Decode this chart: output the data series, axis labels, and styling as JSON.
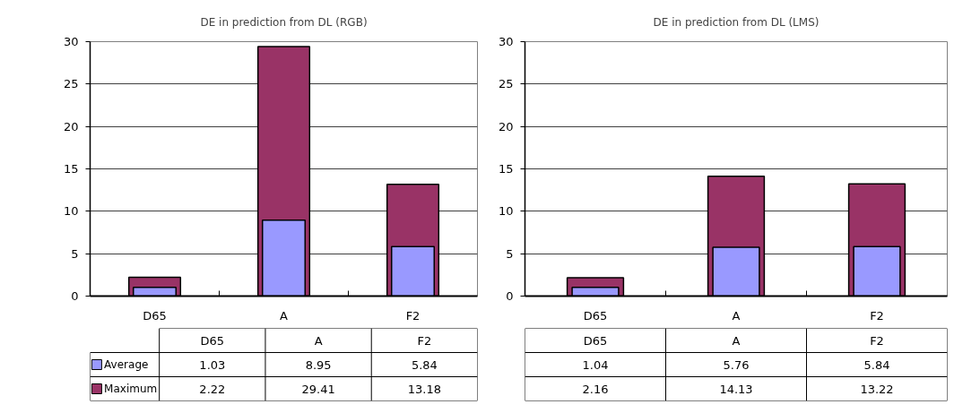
{
  "chart_data": [
    {
      "type": "bar",
      "title": "DE in prediction from DL (RGB)",
      "categories": [
        "D65",
        "A",
        "F2"
      ],
      "series": [
        {
          "name": "Average",
          "color": "#9999ff",
          "values": [
            1.03,
            8.95,
            5.84
          ]
        },
        {
          "name": "Maximum",
          "color": "#993366",
          "values": [
            2.22,
            29.41,
            13.18
          ]
        }
      ],
      "ylim": [
        0,
        30
      ],
      "yticks": [
        0,
        5,
        10,
        15,
        20,
        25,
        30
      ],
      "grid": "y",
      "legend": "bottom left",
      "data_labels": true
    },
    {
      "type": "bar",
      "title": "DE in prediction from DL (LMS)",
      "categories": [
        "D65",
        "A",
        "F2"
      ],
      "series": [
        {
          "color": "#9999ff",
          "values": [
            1.04,
            5.76,
            5.84
          ]
        },
        {
          "color": "#993366",
          "values": [
            2.16,
            14.13,
            13.22
          ]
        }
      ],
      "ylim": [
        0,
        30
      ],
      "yticks": [
        0,
        5,
        10,
        15,
        20,
        25,
        30
      ],
      "grid": "y",
      "data_labels": true
    }
  ]
}
